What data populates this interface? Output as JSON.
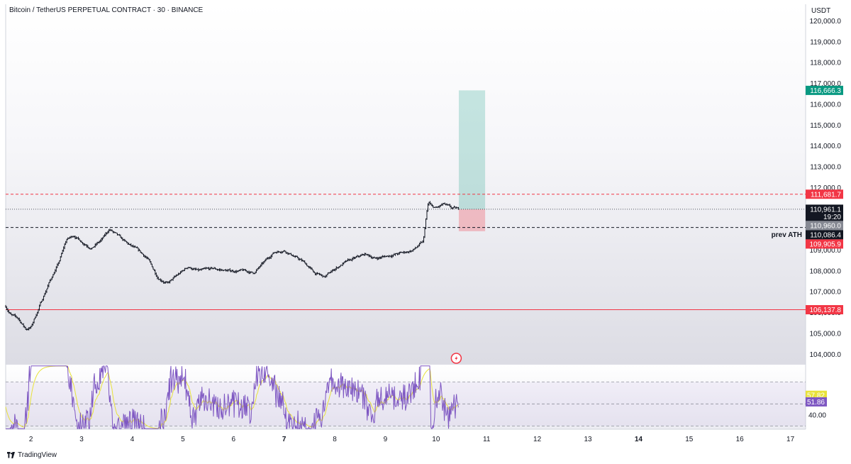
{
  "header": {
    "symbol_title": "Bitcoin / TetherUS PERPETUAL CONTRACT · 30 · BINANCE",
    "currency": "USDT"
  },
  "footer": {
    "logo_text": "TradingView",
    "logo_icon": "tradingview-logo-icon"
  },
  "chart_data": {
    "type": "line",
    "subtype": "candlestick-ohlc",
    "price_axis": {
      "ylim": [
        103500,
        120800
      ],
      "ticks": [
        104000,
        105000,
        106000,
        107000,
        108000,
        109000,
        110000,
        111000,
        112000,
        113000,
        114000,
        115000,
        116000,
        117000,
        118000,
        119000,
        120000
      ],
      "tick_labels": [
        "104,000.0",
        "105,000.0",
        "106,000.0",
        "107,000.0",
        "108,000.0",
        "109,000.0",
        "110,000.0",
        "111,000.0",
        "112,000.0",
        "113,000.0",
        "114,000.0",
        "115,000.0",
        "116,000.0",
        "117,000.0",
        "118,000.0",
        "119,000.0",
        "120,000.0"
      ]
    },
    "time_axis": {
      "xlim": [
        1.5,
        17.3
      ],
      "ticks": [
        2,
        3,
        4,
        5,
        6,
        7,
        8,
        9,
        10,
        11,
        12,
        13,
        14,
        15,
        16,
        17
      ],
      "tick_labels": [
        "2",
        "3",
        "4",
        "5",
        "6",
        "7",
        "8",
        "9",
        "10",
        "11",
        "12",
        "13",
        "14",
        "15",
        "16",
        "17"
      ],
      "bold_ticks": [
        "7",
        "14"
      ]
    },
    "price_path": [
      [
        1.5,
        106300
      ],
      [
        1.6,
        105900
      ],
      [
        1.75,
        105700
      ],
      [
        1.9,
        105200
      ],
      [
        2.0,
        105300
      ],
      [
        2.2,
        106500
      ],
      [
        2.35,
        107400
      ],
      [
        2.55,
        108400
      ],
      [
        2.7,
        109500
      ],
      [
        2.85,
        109700
      ],
      [
        3.0,
        109400
      ],
      [
        3.2,
        109100
      ],
      [
        3.4,
        109500
      ],
      [
        3.55,
        110000
      ],
      [
        3.7,
        109700
      ],
      [
        3.9,
        109300
      ],
      [
        4.1,
        109000
      ],
      [
        4.3,
        108600
      ],
      [
        4.5,
        107700
      ],
      [
        4.7,
        107400
      ],
      [
        4.9,
        107800
      ],
      [
        5.1,
        108200
      ],
      [
        5.3,
        108000
      ],
      [
        5.6,
        108100
      ],
      [
        5.9,
        108000
      ],
      [
        6.2,
        108000
      ],
      [
        6.4,
        107900
      ],
      [
        6.6,
        108400
      ],
      [
        6.8,
        108900
      ],
      [
        7.0,
        109000
      ],
      [
        7.2,
        108700
      ],
      [
        7.4,
        108400
      ],
      [
        7.6,
        107900
      ],
      [
        7.8,
        107700
      ],
      [
        8.0,
        108100
      ],
      [
        8.2,
        108400
      ],
      [
        8.4,
        108600
      ],
      [
        8.6,
        108800
      ],
      [
        8.8,
        108600
      ],
      [
        9.0,
        108700
      ],
      [
        9.2,
        108800
      ],
      [
        9.4,
        108900
      ],
      [
        9.55,
        109000
      ],
      [
        9.75,
        109400
      ],
      [
        9.8,
        110500
      ],
      [
        9.85,
        111300
      ],
      [
        9.9,
        111100
      ],
      [
        10.0,
        111000
      ],
      [
        10.15,
        111200
      ],
      [
        10.3,
        111000
      ],
      [
        10.45,
        110961
      ]
    ],
    "price_lines": [
      {
        "value": 111681.7,
        "label": "111,681.7",
        "style": "dashed",
        "color": "#f23645"
      },
      {
        "value": 110961.1,
        "label": "110,961.1",
        "style": "dotted",
        "color": "#131722",
        "countdown": "19:20"
      },
      {
        "value": 110960.0,
        "label": "110,960.0",
        "style": "none",
        "color": "#868993"
      },
      {
        "value": 110086.4,
        "label": "110,086.4",
        "style": "dashed",
        "color": "#131722",
        "annotation": "prev ATH"
      },
      {
        "value": 109905.9,
        "label": "109,905.9",
        "style": "none",
        "color": "#f23645"
      },
      {
        "value": 106137.8,
        "label": "106,137.8",
        "style": "solid",
        "color": "#f23645"
      }
    ],
    "position_tool": {
      "x_start": 10.45,
      "x_end": 10.97,
      "entry": 110961.1,
      "target": 116666.3,
      "target_label": "116,666.3",
      "stop": 109905.9,
      "target_color": "#089981",
      "stop_color": "#f23645"
    },
    "rsi": {
      "ylim": [
        27,
        85
      ],
      "upper_band": 70,
      "middle_band": 50,
      "lower_band": 30,
      "ticks": [
        40
      ],
      "tick_labels": [
        "40.00"
      ],
      "rsi_value": 51.86,
      "rsi_label": "51.86",
      "ma_value": 57.82,
      "ma_label": "57.82",
      "rsi_color": "#7e57c2",
      "ma_color": "#e8e23a"
    }
  },
  "icons": {
    "event_marker": "lightning-event-icon"
  }
}
